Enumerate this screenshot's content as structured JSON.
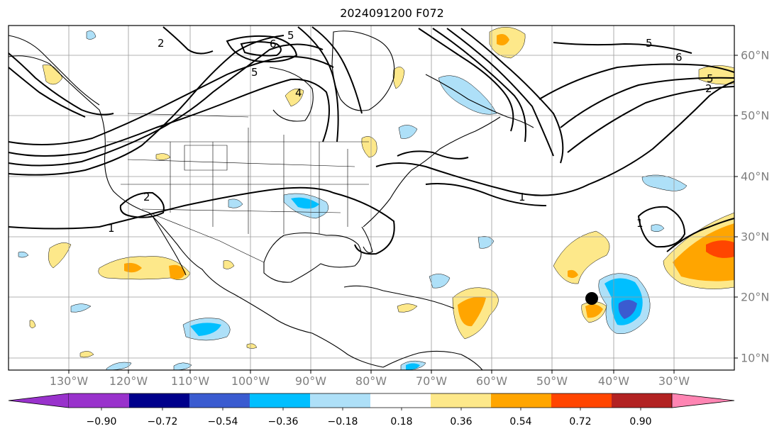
{
  "title": "2024091200 F072",
  "longitude_labels": [
    "130°W",
    "120°W",
    "110°W",
    "100°W",
    "90°W",
    "80°W",
    "70°W",
    "60°W",
    "50°W",
    "40°W",
    "30°W"
  ],
  "latitude_labels": [
    "60°N",
    "50°N",
    "40°N",
    "30°N",
    "20°N",
    "10°N"
  ],
  "contour_labels": [
    "6",
    "5",
    "5",
    "4",
    "2",
    "2",
    "1",
    "1",
    "1",
    "5",
    "6",
    "2",
    "5"
  ],
  "colorbar": {
    "tick_labels": [
      "−0.90",
      "−0.72",
      "−0.54",
      "−0.36",
      "−0.18",
      "0.18",
      "0.36",
      "0.54",
      "0.72",
      "0.90"
    ],
    "colors": [
      "#9932cc",
      "#00008b",
      "#3a5bd0",
      "#00bfff",
      "#aee0f8",
      "#ffffff",
      "#fde88a",
      "#ffa500",
      "#ff4500",
      "#b22222",
      "#ff85b3"
    ]
  },
  "marker": {
    "type": "black-dot",
    "longitude": -44.5,
    "latitude": 19.5
  }
}
